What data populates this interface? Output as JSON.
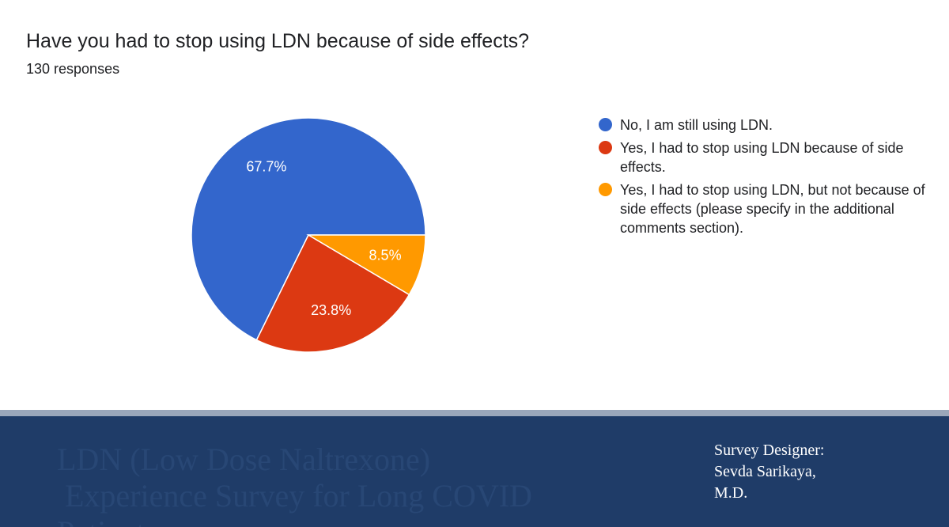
{
  "chart_data": {
    "type": "pie",
    "title": "Have you had to stop using LDN because of side effects?",
    "subtitle": "130 responses",
    "slices": [
      {
        "label": "No, I am still using LDN.",
        "value": 67.7,
        "display": "67.7%",
        "color": "#3366cc"
      },
      {
        "label": "Yes, I had to stop using LDN because of side effects.",
        "value": 23.8,
        "display": "23.8%",
        "color": "#dc3912"
      },
      {
        "label": "Yes, I had to stop using LDN, but not because of side effects (please specify in the additional comments section).",
        "value": 8.5,
        "display": "8.5%",
        "color": "#ff9900"
      }
    ],
    "legend_position": "right"
  },
  "footer": {
    "watermark": "LDN (Low Dose Naltrexone)\n Experience Survey for Long COVID\nPatients",
    "credit": "Survey Designer:\nSevda Sarikaya,\nM.D.",
    "background": "#1f3c68"
  }
}
